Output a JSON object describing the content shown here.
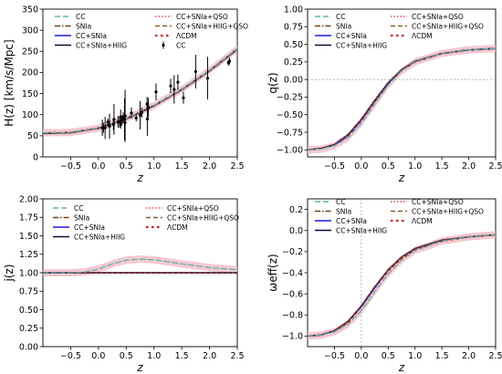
{
  "chart_data": [
    {
      "type": "line",
      "panel": "top-left",
      "xlabel": "z",
      "ylabel": "H(z) [km/s/Mpc]",
      "xlim": [
        -1,
        2.5
      ],
      "ylim": [
        0,
        350
      ],
      "xticks": [
        -0.5,
        0.0,
        0.5,
        1.0,
        1.5,
        2.0,
        2.5
      ],
      "xtick_labels": [
        "−0.5",
        "0.0",
        "0.5",
        "1.0",
        "1.5",
        "2.0",
        "2.5"
      ],
      "yticks": [
        0,
        50,
        100,
        150,
        200,
        250,
        300,
        350
      ],
      "ytick_labels": [
        "0",
        "50",
        "100",
        "150",
        "200",
        "250",
        "300",
        "350"
      ],
      "grid": false,
      "legend_position": "top-left",
      "legend": [
        "CC",
        "SNIa",
        "CC+SNIa",
        "CC+SNIa+HIIG",
        "CC+SNIa+QSO",
        "CC+SNIa+HIIG+QSO",
        "ΛCDM",
        "CC"
      ],
      "x": [
        -1.0,
        -0.5,
        0.0,
        0.5,
        1.0,
        1.5,
        2.0,
        2.5
      ],
      "series": [
        {
          "name": "CC",
          "values": [
            57,
            58,
            68,
            91,
            122,
            160,
            205,
            256
          ]
        },
        {
          "name": "SNIa",
          "values": [
            55,
            57,
            67,
            90,
            121,
            159,
            203,
            254
          ]
        },
        {
          "name": "CC+SNIa",
          "values": [
            56,
            57,
            68,
            90,
            121,
            159,
            204,
            255
          ]
        },
        {
          "name": "CC+SNIa+HIIG",
          "values": [
            56,
            57,
            68,
            91,
            122,
            160,
            205,
            256
          ]
        },
        {
          "name": "CC+SNIa+QSO",
          "values": [
            56,
            57,
            68,
            90,
            121,
            159,
            204,
            255
          ]
        },
        {
          "name": "CC+SNIa+HIIG+QSO",
          "values": [
            56,
            57,
            68,
            90,
            121,
            159,
            204,
            255
          ]
        },
        {
          "name": "ΛCDM",
          "values": [
            56,
            58,
            68,
            90,
            121,
            159,
            204,
            255
          ]
        }
      ],
      "observations": {
        "name": "CC",
        "points": [
          {
            "x": 0.07,
            "y": 69,
            "err": 19.6
          },
          {
            "x": 0.09,
            "y": 69,
            "err": 12
          },
          {
            "x": 0.12,
            "y": 68.6,
            "err": 26.2
          },
          {
            "x": 0.17,
            "y": 83,
            "err": 8
          },
          {
            "x": 0.179,
            "y": 75,
            "err": 4
          },
          {
            "x": 0.199,
            "y": 75,
            "err": 5
          },
          {
            "x": 0.2,
            "y": 72.9,
            "err": 29.6
          },
          {
            "x": 0.27,
            "y": 77,
            "err": 14
          },
          {
            "x": 0.28,
            "y": 88.8,
            "err": 36.6
          },
          {
            "x": 0.352,
            "y": 83,
            "err": 14
          },
          {
            "x": 0.38,
            "y": 83,
            "err": 13.5
          },
          {
            "x": 0.4,
            "y": 95,
            "err": 17
          },
          {
            "x": 0.4004,
            "y": 77,
            "err": 10.2
          },
          {
            "x": 0.425,
            "y": 87.1,
            "err": 11.2
          },
          {
            "x": 0.445,
            "y": 92.8,
            "err": 12.9
          },
          {
            "x": 0.47,
            "y": 89,
            "err": 50
          },
          {
            "x": 0.4783,
            "y": 80.9,
            "err": 9
          },
          {
            "x": 0.48,
            "y": 97,
            "err": 62
          },
          {
            "x": 0.593,
            "y": 104,
            "err": 13
          },
          {
            "x": 0.68,
            "y": 92,
            "err": 8
          },
          {
            "x": 0.75,
            "y": 98.8,
            "err": 33.6
          },
          {
            "x": 0.781,
            "y": 105,
            "err": 12
          },
          {
            "x": 0.875,
            "y": 125,
            "err": 17
          },
          {
            "x": 0.88,
            "y": 90,
            "err": 40
          },
          {
            "x": 0.9,
            "y": 117,
            "err": 23
          },
          {
            "x": 1.037,
            "y": 154,
            "err": 20
          },
          {
            "x": 1.3,
            "y": 168,
            "err": 17
          },
          {
            "x": 1.363,
            "y": 160,
            "err": 33.6
          },
          {
            "x": 1.43,
            "y": 177,
            "err": 18
          },
          {
            "x": 1.53,
            "y": 140,
            "err": 14
          },
          {
            "x": 1.75,
            "y": 202,
            "err": 40
          },
          {
            "x": 1.965,
            "y": 186.5,
            "err": 50.4
          },
          {
            "x": 2.34,
            "y": 223,
            "err": 7
          },
          {
            "x": 2.36,
            "y": 227,
            "err": 8
          }
        ]
      }
    },
    {
      "type": "line",
      "panel": "top-right",
      "xlabel": "z",
      "ylabel": "q(z)",
      "xlim": [
        -1,
        2.5
      ],
      "ylim": [
        -1.1,
        1.0
      ],
      "xticks": [
        -0.5,
        0.0,
        0.5,
        1.0,
        1.5,
        2.0,
        2.5
      ],
      "xtick_labels": [
        "−0.5",
        "0.0",
        "0.5",
        "1.0",
        "1.5",
        "2.0",
        "2.5"
      ],
      "yticks": [
        -1.0,
        -0.75,
        -0.5,
        -0.25,
        0.0,
        0.25,
        0.5,
        0.75,
        1.0
      ],
      "ytick_labels": [
        "−1.00",
        "−0.75",
        "−0.50",
        "−0.25",
        "0.00",
        "0.25",
        "0.50",
        "0.75",
        "1.00"
      ],
      "grid": false,
      "reference_line_y": 0,
      "legend_position": "top-left",
      "legend": [
        "CC",
        "SNIa",
        "CC+SNIa",
        "CC+SNIa+HIIG",
        "CC+SNIa+QSO",
        "CC+SNIa+HIIG+QSO",
        "ΛCDM"
      ],
      "x": [
        -1.0,
        -0.75,
        -0.5,
        -0.25,
        0.0,
        0.25,
        0.5,
        0.75,
        1.0,
        1.5,
        2.0,
        2.5
      ],
      "series": [
        {
          "name": "CC",
          "values": [
            -1.0,
            -0.99,
            -0.94,
            -0.83,
            -0.62,
            -0.35,
            -0.08,
            0.12,
            0.25,
            0.37,
            0.42,
            0.44
          ]
        },
        {
          "name": "SNIa",
          "values": [
            -1.0,
            -0.98,
            -0.92,
            -0.78,
            -0.56,
            -0.29,
            -0.04,
            0.14,
            0.26,
            0.37,
            0.42,
            0.44
          ]
        },
        {
          "name": "CC+SNIa",
          "values": [
            -1.0,
            -0.98,
            -0.93,
            -0.79,
            -0.57,
            -0.3,
            -0.05,
            0.14,
            0.26,
            0.37,
            0.42,
            0.44
          ]
        },
        {
          "name": "CC+SNIa+HIIG",
          "values": [
            -1.0,
            -0.98,
            -0.93,
            -0.79,
            -0.57,
            -0.3,
            -0.05,
            0.14,
            0.26,
            0.37,
            0.42,
            0.44
          ]
        },
        {
          "name": "CC+SNIa+QSO",
          "values": [
            -1.0,
            -0.98,
            -0.93,
            -0.79,
            -0.57,
            -0.3,
            -0.05,
            0.14,
            0.26,
            0.37,
            0.42,
            0.44
          ]
        },
        {
          "name": "CC+SNIa+HIIG+QSO",
          "values": [
            -1.0,
            -0.98,
            -0.93,
            -0.79,
            -0.57,
            -0.3,
            -0.05,
            0.14,
            0.26,
            0.37,
            0.42,
            0.44
          ]
        },
        {
          "name": "ΛCDM",
          "values": [
            -1.0,
            -0.98,
            -0.93,
            -0.8,
            -0.58,
            -0.31,
            -0.06,
            0.13,
            0.25,
            0.37,
            0.42,
            0.44
          ]
        }
      ]
    },
    {
      "type": "line",
      "panel": "bottom-left",
      "xlabel": "z",
      "ylabel": "j(z)",
      "xlim": [
        -1,
        2.5
      ],
      "ylim": [
        0,
        2
      ],
      "xticks": [
        -0.5,
        0.0,
        0.5,
        1.0,
        1.5,
        2.0,
        2.5
      ],
      "xtick_labels": [
        "−0.5",
        "0.0",
        "0.5",
        "1.0",
        "1.5",
        "2.0",
        "2.5"
      ],
      "yticks": [
        0.0,
        0.25,
        0.5,
        0.75,
        1.0,
        1.25,
        1.5,
        1.75,
        2.0
      ],
      "ytick_labels": [
        "0.00",
        "0.25",
        "0.50",
        "0.75",
        "1.00",
        "1.25",
        "1.50",
        "1.75",
        "2.00"
      ],
      "grid": false,
      "legend_position": "top",
      "legend": [
        "CC",
        "SNIa",
        "CC+SNIa",
        "CC+SNIa+HIIG",
        "CC+SNIa+QSO",
        "CC+SNIa+HIIG+QSO",
        "ΛCDM"
      ],
      "x": [
        -1.0,
        -0.5,
        -0.25,
        0.0,
        0.25,
        0.5,
        0.75,
        1.0,
        1.5,
        2.0,
        2.5
      ],
      "series": [
        {
          "name": "CC",
          "values": [
            1.0,
            1.0,
            1.01,
            1.05,
            1.12,
            1.17,
            1.185,
            1.175,
            1.12,
            1.07,
            1.04
          ]
        },
        {
          "name": "SNIa",
          "values": [
            1.0,
            1.0,
            1.0,
            1.0,
            1.0,
            1.0,
            1.0,
            1.0,
            1.0,
            1.0,
            1.0
          ]
        },
        {
          "name": "CC+SNIa",
          "values": [
            1.0,
            1.0,
            1.0,
            1.0,
            1.0,
            1.0,
            1.0,
            1.0,
            1.0,
            1.0,
            1.0
          ]
        },
        {
          "name": "CC+SNIa+HIIG",
          "values": [
            1.0,
            1.0,
            1.0,
            1.0,
            1.0,
            1.0,
            1.0,
            1.0,
            1.0,
            1.0,
            1.0
          ]
        },
        {
          "name": "CC+SNIa+QSO",
          "values": [
            1.0,
            1.0,
            1.0,
            1.0,
            1.0,
            1.0,
            1.0,
            1.0,
            1.0,
            1.0,
            1.0
          ]
        },
        {
          "name": "CC+SNIa+HIIG+QSO",
          "values": [
            1.0,
            1.0,
            1.0,
            1.0,
            1.0,
            1.0,
            1.0,
            1.0,
            1.0,
            1.0,
            1.0
          ]
        },
        {
          "name": "ΛCDM",
          "values": [
            1.0,
            1.0,
            1.0,
            1.0,
            1.0,
            1.0,
            1.0,
            1.0,
            1.0,
            1.0,
            1.0
          ]
        }
      ]
    },
    {
      "type": "line",
      "panel": "bottom-right",
      "xlabel": "z",
      "ylabel": "ωeff(z)",
      "xlim": [
        -1,
        2.5
      ],
      "ylim": [
        -1.1,
        0.3
      ],
      "xticks": [
        -0.5,
        0.0,
        0.5,
        1.0,
        1.5,
        2.0,
        2.5
      ],
      "xtick_labels": [
        "−0.5",
        "0.0",
        "0.5",
        "1.0",
        "1.5",
        "2.0",
        "2.5"
      ],
      "yticks": [
        -1.0,
        -0.8,
        -0.6,
        -0.4,
        -0.2,
        0.0,
        0.2
      ],
      "ytick_labels": [
        "−1.0",
        "−0.8",
        "−0.6",
        "−0.4",
        "−0.2",
        "0.0",
        "0.2"
      ],
      "grid": false,
      "reference_line_x": 0,
      "legend_position": "top",
      "legend": [
        "CC",
        "SNIa",
        "CC+SNIa",
        "CC+SNIa+HIIG",
        "CC+SNIa+QSO",
        "CC+SNIa+HIIG+QSO",
        "ΛCDM"
      ],
      "x": [
        -1.0,
        -0.75,
        -0.5,
        -0.25,
        0.0,
        0.25,
        0.5,
        0.75,
        1.0,
        1.5,
        2.0,
        2.5
      ],
      "series": [
        {
          "name": "CC",
          "values": [
            -1.0,
            -0.99,
            -0.96,
            -0.89,
            -0.76,
            -0.58,
            -0.41,
            -0.28,
            -0.19,
            -0.1,
            -0.06,
            -0.04
          ]
        },
        {
          "name": "SNIa",
          "values": [
            -1.0,
            -0.99,
            -0.95,
            -0.86,
            -0.71,
            -0.53,
            -0.37,
            -0.25,
            -0.17,
            -0.09,
            -0.06,
            -0.04
          ]
        },
        {
          "name": "CC+SNIa",
          "values": [
            -1.0,
            -0.99,
            -0.95,
            -0.86,
            -0.72,
            -0.54,
            -0.37,
            -0.25,
            -0.17,
            -0.09,
            -0.06,
            -0.04
          ]
        },
        {
          "name": "CC+SNIa+HIIG",
          "values": [
            -1.0,
            -0.99,
            -0.95,
            -0.86,
            -0.72,
            -0.54,
            -0.37,
            -0.25,
            -0.17,
            -0.09,
            -0.06,
            -0.04
          ]
        },
        {
          "name": "CC+SNIa+QSO",
          "values": [
            -1.0,
            -0.99,
            -0.95,
            -0.86,
            -0.72,
            -0.54,
            -0.37,
            -0.25,
            -0.17,
            -0.09,
            -0.06,
            -0.04
          ]
        },
        {
          "name": "CC+SNIa+HIIG+QSO",
          "values": [
            -1.0,
            -0.99,
            -0.95,
            -0.86,
            -0.72,
            -0.54,
            -0.37,
            -0.25,
            -0.17,
            -0.09,
            -0.06,
            -0.04
          ]
        },
        {
          "name": "ΛCDM",
          "values": [
            -1.0,
            -0.99,
            -0.95,
            -0.87,
            -0.72,
            -0.54,
            -0.38,
            -0.26,
            -0.18,
            -0.1,
            -0.06,
            -0.04
          ]
        }
      ]
    }
  ],
  "series_styles": {
    "CC": {
      "color": "#5ab4ac",
      "dash": "6,3"
    },
    "SNIa": {
      "color": "#6b3a16",
      "dash": "6,2,1.5,2"
    },
    "CC+SNIa": {
      "color": "#1b1bd6",
      "dash": ""
    },
    "CC+SNIa+HIIG": {
      "color": "#0a0a3a",
      "dash": ""
    },
    "CC+SNIa+QSO": {
      "color": "#e64545",
      "dash": "1.5,2"
    },
    "CC+SNIa+HIIG+QSO": {
      "color": "#8a5a2a",
      "dash": "5,3"
    },
    "ΛCDM": {
      "color": "#d01515",
      "dash": "2.5,3.5"
    }
  },
  "band_color": "#f4b6c2",
  "observation_color": "#000000"
}
